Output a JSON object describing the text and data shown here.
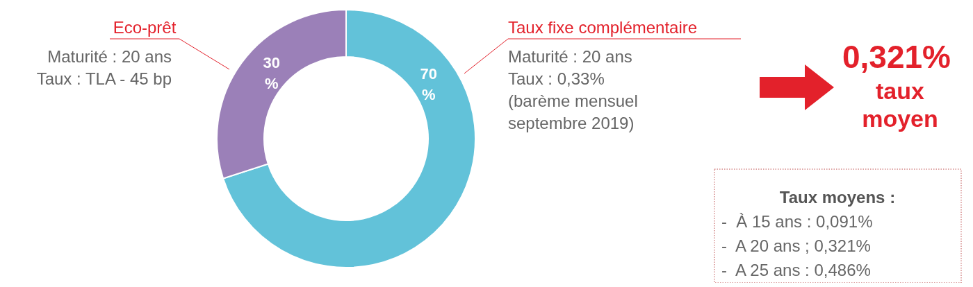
{
  "chart_data": {
    "type": "donut",
    "categories": [
      "Taux fixe complémentaire",
      "Eco-prêt"
    ],
    "values": [
      70,
      30
    ],
    "colors": [
      "#62c2d9",
      "#9b80b8"
    ],
    "value_labels": [
      "70 %",
      "30 %"
    ],
    "annotations": [
      "Maturité : 20 ans\nTaux : TLA - 45 bp",
      "Maturité : 20 ans\nTaux : 0,33%\n(barème mensuel\nseptembre 2019)",
      "0,321%",
      "taux\nmoyen",
      "Taux moyens :",
      "-  À 15 ans : 0,091%\n-  A 20 ans ; 0,321%\n-  A 25 ans : 0,486%"
    ]
  }
}
